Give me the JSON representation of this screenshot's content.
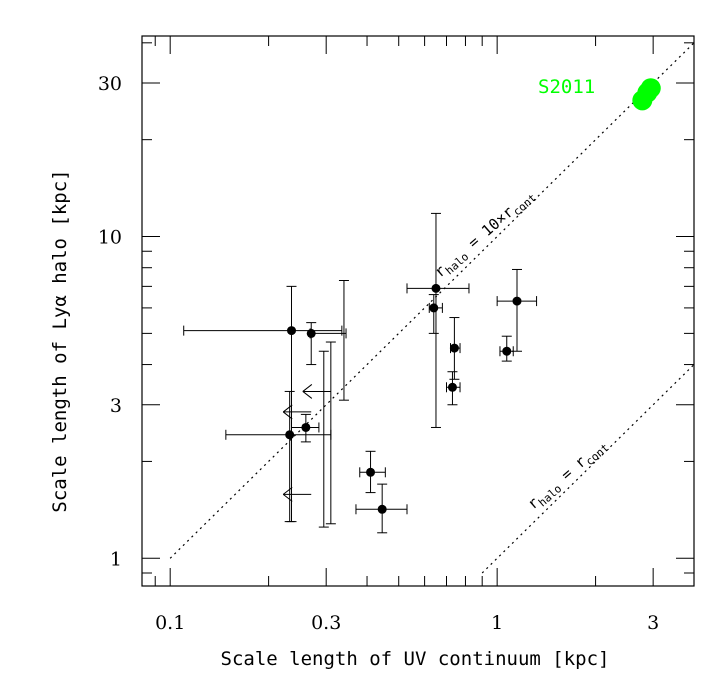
{
  "chart_data": {
    "type": "scatter",
    "title": "",
    "xlabel": "Scale length of UV continuum [kpc]",
    "ylabel": "Scale length of Lyα halo [kpc]",
    "xscale": "log",
    "yscale": "log",
    "xlim": [
      0.082,
      4.0
    ],
    "ylim": [
      0.82,
      42
    ],
    "xticks": [
      {
        "value": 0.1,
        "label": "0.1"
      },
      {
        "value": 0.3,
        "label": "0.3"
      },
      {
        "value": 1,
        "label": "1"
      },
      {
        "value": 3,
        "label": "3"
      }
    ],
    "yticks": [
      {
        "value": 1,
        "label": "1"
      },
      {
        "value": 3,
        "label": "3"
      },
      {
        "value": 10,
        "label": "10"
      },
      {
        "value": 30,
        "label": "30"
      }
    ],
    "grid": false,
    "points": [
      {
        "x": 0.235,
        "y": 5.1,
        "xerr": [
          0.11,
          0.335
        ],
        "yerr": [
          1.3,
          7.0
        ]
      },
      {
        "x": 0.27,
        "y": 5.0,
        "xerr": [
          0.268,
          0.345
        ],
        "yerr": [
          4.0,
          5.4
        ]
      },
      {
        "x": 0.232,
        "y": 2.42,
        "xerr": [
          0.148,
          0.31
        ],
        "yerr": [
          1.3,
          3.3
        ]
      },
      {
        "x": 0.26,
        "y": 2.55,
        "xerr": [
          0.235,
          0.285
        ],
        "yerr": [
          2.3,
          2.8
        ]
      },
      {
        "x": 0.41,
        "y": 1.85,
        "xerr": [
          0.38,
          0.455
        ],
        "yerr": [
          1.6,
          2.15
        ]
      },
      {
        "x": 0.445,
        "y": 1.42,
        "xerr": [
          0.37,
          0.53
        ],
        "yerr": [
          1.2,
          1.7
        ]
      },
      {
        "x": 0.64,
        "y": 6.0,
        "xerr": [
          0.62,
          0.68
        ],
        "yerr": [
          5.0,
          6.6
        ]
      },
      {
        "x": 0.65,
        "y": 6.9,
        "xerr": [
          0.53,
          0.82
        ],
        "yerr": [
          2.55,
          11.8
        ]
      },
      {
        "x": 0.74,
        "y": 4.5,
        "xerr": [
          0.72,
          0.77
        ],
        "yerr": [
          3.6,
          5.6
        ]
      },
      {
        "x": 0.73,
        "y": 3.4,
        "xerr": [
          0.7,
          0.77
        ],
        "yerr": [
          3.0,
          3.8
        ]
      },
      {
        "x": 1.07,
        "y": 4.4,
        "xerr": [
          1.02,
          1.12
        ],
        "yerr": [
          4.1,
          4.9
        ]
      },
      {
        "x": 1.15,
        "y": 6.3,
        "xerr": [
          1.0,
          1.32
        ],
        "yerr": [
          4.4,
          7.9
        ]
      }
    ],
    "upper_limits": [
      {
        "x": 0.31,
        "y_low": 1.28,
        "y_high": 4.7
      },
      {
        "x": 0.34,
        "y_low": 3.1,
        "y_high": 7.3
      },
      {
        "x": 0.295,
        "y_low": 1.25,
        "y_high": 4.4
      }
    ],
    "x_upper_limits": [
      {
        "x": 0.31,
        "y": 3.3
      },
      {
        "x": 0.27,
        "y": 2.85
      },
      {
        "x": 0.27,
        "y": 1.58
      }
    ],
    "lines": [
      {
        "label": "r_halo = 10×r_cont",
        "ratio": 10
      },
      {
        "label": "r_halo = r_cont",
        "ratio": 1
      }
    ],
    "annotation_halo10_main": "r",
    "annotation_halo10_sub1": "halo",
    "annotation_halo10_mid": " = 10×r",
    "annotation_halo10_sub2": "cont",
    "annotation_halo1_main": "r",
    "annotation_halo1_sub1": "halo",
    "annotation_halo1_mid": " = r",
    "annotation_halo1_sub2": "cont",
    "comparison": {
      "label": "S2011",
      "color": "#00ff00",
      "points": [
        {
          "x": 2.78,
          "y": 26.5
        },
        {
          "x": 2.88,
          "y": 28.0
        },
        {
          "x": 2.95,
          "y": 28.9
        }
      ]
    }
  }
}
